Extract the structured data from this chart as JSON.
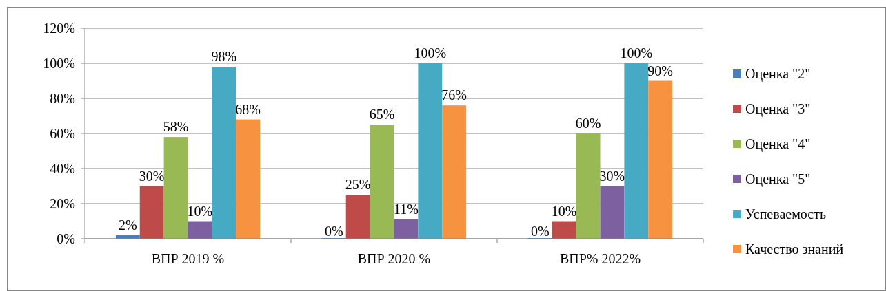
{
  "chart_data": {
    "type": "bar",
    "categories": [
      "ВПР 2019 %",
      "ВПР 2020 %",
      "ВПР% 2022%"
    ],
    "series": [
      {
        "name": "Оценка \"2\"",
        "color": "#4a7ebb",
        "values": [
          2,
          0,
          0
        ],
        "value_labels": [
          "2%",
          "0%",
          "0%"
        ]
      },
      {
        "name": "Оценка \"3\"",
        "color": "#be4b48",
        "values": [
          30,
          25,
          10
        ],
        "value_labels": [
          "30%",
          "25%",
          "10%"
        ]
      },
      {
        "name": "Оценка \"4\"",
        "color": "#98b954",
        "values": [
          58,
          65,
          60
        ],
        "value_labels": [
          "58%",
          "65%",
          "60%"
        ]
      },
      {
        "name": "Оценка \"5\"",
        "color": "#7d60a0",
        "values": [
          10,
          11,
          30
        ],
        "value_labels": [
          "10%",
          "11%",
          "30%"
        ]
      },
      {
        "name": "Успеваемость",
        "color": "#46aac5",
        "values": [
          98,
          100,
          100
        ],
        "value_labels": [
          "98%",
          "100%",
          "100%"
        ]
      },
      {
        "name": "Качество знаний",
        "color": "#f69240",
        "values": [
          68,
          76,
          90
        ],
        "value_labels": [
          "68%",
          "76%",
          "90%"
        ]
      }
    ],
    "ylim": [
      0,
      120
    ],
    "yticks": [
      {
        "value": 0,
        "label": "0%"
      },
      {
        "value": 20,
        "label": "20%"
      },
      {
        "value": 40,
        "label": "40%"
      },
      {
        "value": 60,
        "label": "60%"
      },
      {
        "value": 80,
        "label": "80%"
      },
      {
        "value": 100,
        "label": "100%"
      },
      {
        "value": 120,
        "label": "120%"
      }
    ],
    "grid": "y",
    "legend": "right"
  }
}
